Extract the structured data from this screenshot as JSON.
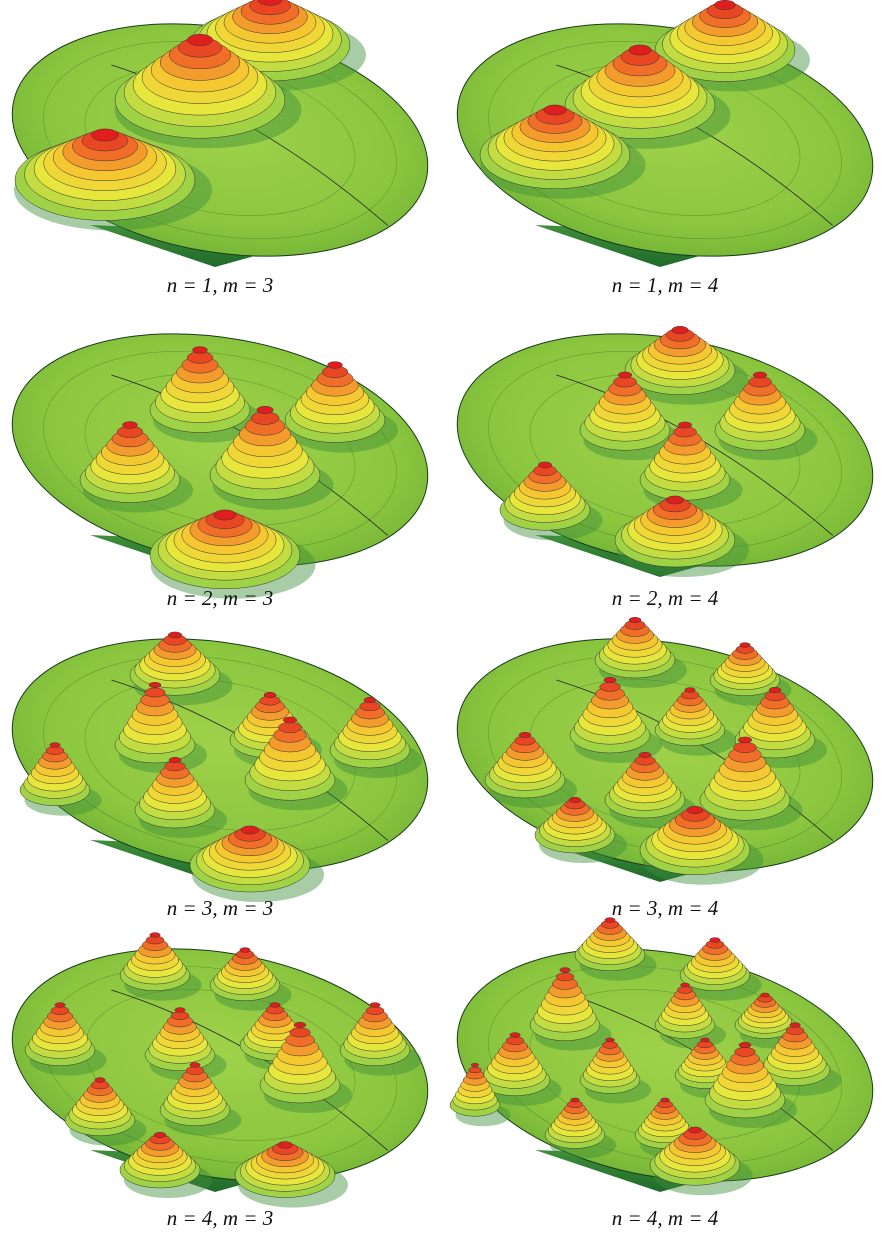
{
  "panels": [
    {
      "caption": "n = 1, m = 3"
    },
    {
      "caption": "n = 1, m = 4"
    },
    {
      "caption": "n = 2, m = 3"
    },
    {
      "caption": "n = 2, m = 4"
    },
    {
      "caption": "n = 3, m = 3"
    },
    {
      "caption": "n = 3, m = 4"
    },
    {
      "caption": "n = 4, m = 3"
    },
    {
      "caption": "n = 4, m = 4"
    }
  ]
}
